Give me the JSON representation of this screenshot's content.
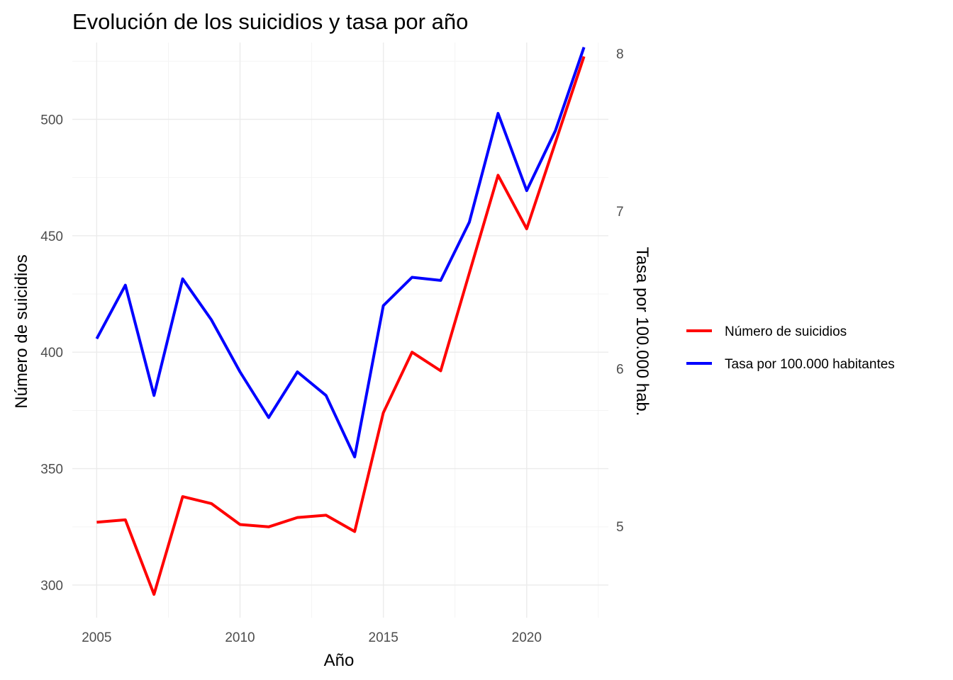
{
  "chart_data": {
    "type": "line",
    "title": "Evolución de los suicidios y tasa por año",
    "xlabel": "Año",
    "ylabel": "Número de suicidios",
    "y2label": "Tasa por 100.000 hab.",
    "x": [
      2005,
      2006,
      2007,
      2008,
      2009,
      2010,
      2011,
      2012,
      2013,
      2014,
      2015,
      2016,
      2017,
      2018,
      2019,
      2020,
      2021,
      2022
    ],
    "xticks": [
      "2005",
      "2010",
      "2015",
      "2020"
    ],
    "xlim": [
      2004.15,
      2022.85
    ],
    "ylim": [
      286,
      533
    ],
    "yticks": [
      "300",
      "350",
      "400",
      "450",
      "500"
    ],
    "y2lim": [
      4.42,
      8.07
    ],
    "y2ticks": [
      "5",
      "6",
      "7",
      "8"
    ],
    "grid": true,
    "legend_position": "right",
    "series": [
      {
        "name": "Número de suicidios",
        "axis": "left",
        "color": "#ff0000",
        "values": [
          327,
          328,
          296,
          338,
          335,
          326,
          325,
          329,
          330,
          323,
          374,
          400,
          392,
          434,
          476,
          453,
          490,
          527
        ]
      },
      {
        "name": "Tasa por 100.000 habitantes",
        "axis": "right",
        "color": "#0000ff",
        "values": [
          6.19,
          6.53,
          5.83,
          6.57,
          6.31,
          5.98,
          5.69,
          5.98,
          5.83,
          5.44,
          6.4,
          6.58,
          6.56,
          6.93,
          7.62,
          7.13,
          7.51,
          8.04
        ]
      }
    ]
  }
}
